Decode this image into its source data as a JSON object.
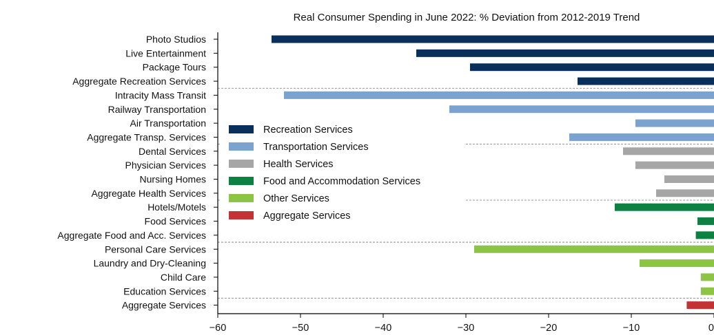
{
  "chart_data": {
    "type": "bar",
    "orientation": "horizontal",
    "title": "Real Consumer Spending in June 2022: % Deviation from 2012-2019 Trend",
    "xlabel": "",
    "ylabel": "",
    "xlim": [
      -60,
      0
    ],
    "xticks": [
      -60,
      -50,
      -40,
      -30,
      -20,
      -10,
      0
    ],
    "xtick_labels": [
      "−60",
      "−50",
      "−40",
      "−30",
      "−20",
      "−10",
      "0"
    ],
    "grid": false,
    "legend_position": "center-left",
    "categories": [
      "Photo Studios",
      "Live Entertainment",
      "Package Tours",
      "Aggregate Recreation Services",
      "Intracity Mass Transit",
      "Railway Transportation",
      "Air Transportation",
      "Aggregate Transp. Services",
      "Dental Services",
      "Physician Services",
      "Nursing Homes",
      "Aggregate Health Services",
      "Hotels/Motels",
      "Food Services",
      "Aggregate Food and Acc. Services",
      "Personal Care Services",
      "Laundry and Dry-Cleaning",
      "Child Care",
      "Education Services",
      "Aggregate Services"
    ],
    "values": [
      -53.5,
      -36,
      -29.5,
      -16.5,
      -52,
      -32,
      -9.5,
      -17.5,
      -11,
      -9.5,
      -6,
      -7,
      -12,
      -2,
      -2.2,
      -29,
      -9,
      -1.6,
      -1.6,
      -3.3
    ],
    "groups": [
      0,
      0,
      0,
      0,
      1,
      1,
      1,
      1,
      2,
      2,
      2,
      2,
      3,
      3,
      3,
      4,
      4,
      4,
      4,
      5
    ],
    "legend": [
      {
        "name": "Recreation Services",
        "color": "#08305a"
      },
      {
        "name": "Transportation Services",
        "color": "#7ba3d0"
      },
      {
        "name": "Health Services",
        "color": "#a6a6a6"
      },
      {
        "name": "Food and Accommodation Services",
        "color": "#0c8142"
      },
      {
        "name": "Other Services",
        "color": "#8cc443"
      },
      {
        "name": "Aggregate Services",
        "color": "#c33333"
      }
    ],
    "separators_after_rows": [
      3,
      7,
      11,
      14,
      18
    ]
  }
}
